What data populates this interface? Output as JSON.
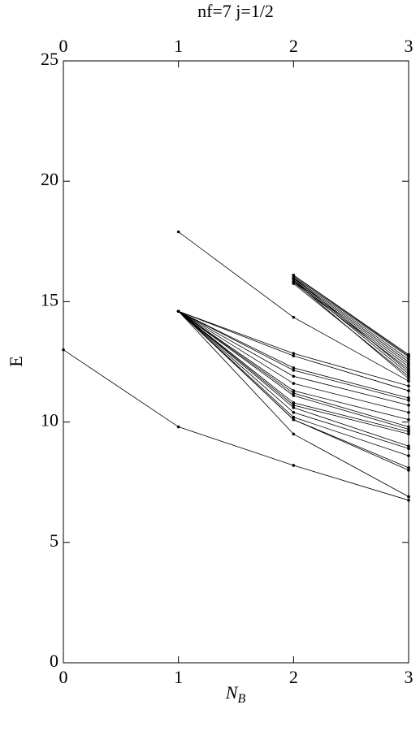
{
  "chart_data": {
    "type": "line",
    "title": "nf=7   j=1/2",
    "xlabel": "N",
    "xlabel_subscript": "B",
    "ylabel": "E",
    "x": [
      0,
      1,
      2,
      3
    ],
    "xlim": [
      0,
      3
    ],
    "xticks": [
      0,
      1,
      2,
      3
    ],
    "ylim": [
      0,
      25
    ],
    "yticks": [
      0,
      5,
      10,
      15,
      20,
      25
    ],
    "color": "#000000",
    "series": [
      {
        "values": [
          13.0,
          9.8,
          8.2,
          6.75
        ]
      },
      {
        "values": [
          null,
          17.9,
          14.35,
          11.7
        ]
      },
      {
        "values": [
          null,
          14.6,
          12.85,
          11.5
        ]
      },
      {
        "values": [
          null,
          14.6,
          12.75,
          11.3
        ]
      },
      {
        "values": [
          null,
          14.6,
          12.25,
          11.0
        ]
      },
      {
        "values": [
          null,
          14.6,
          12.15,
          10.9
        ]
      },
      {
        "values": [
          null,
          14.6,
          11.9,
          10.7
        ]
      },
      {
        "values": [
          null,
          14.6,
          11.6,
          10.4
        ]
      },
      {
        "values": [
          null,
          14.6,
          11.3,
          10.1
        ]
      },
      {
        "values": [
          null,
          14.6,
          11.2,
          9.8
        ]
      },
      {
        "values": [
          null,
          14.6,
          11.1,
          9.7
        ]
      },
      {
        "values": [
          null,
          14.6,
          10.8,
          9.6
        ]
      },
      {
        "values": [
          null,
          14.6,
          10.7,
          9.5
        ]
      },
      {
        "values": [
          null,
          14.6,
          10.6,
          9.0
        ]
      },
      {
        "values": [
          null,
          14.6,
          10.4,
          8.9
        ]
      },
      {
        "values": [
          null,
          14.6,
          10.2,
          8.6
        ]
      },
      {
        "values": [
          null,
          14.6,
          10.1,
          8.1
        ]
      },
      {
        "values": [
          null,
          14.6,
          10.1,
          8.0
        ]
      },
      {
        "values": [
          null,
          14.6,
          9.5,
          6.9
        ]
      },
      {
        "values": [
          null,
          null,
          16.1,
          12.8
        ]
      },
      {
        "values": [
          null,
          null,
          16.05,
          12.7
        ]
      },
      {
        "values": [
          null,
          null,
          16.0,
          12.6
        ]
      },
      {
        "values": [
          null,
          null,
          15.95,
          12.5
        ]
      },
      {
        "values": [
          null,
          null,
          15.9,
          12.4
        ]
      },
      {
        "values": [
          null,
          null,
          15.85,
          12.3
        ]
      },
      {
        "values": [
          null,
          null,
          15.8,
          12.2
        ]
      },
      {
        "values": [
          null,
          null,
          16.0,
          12.1
        ]
      },
      {
        "values": [
          null,
          null,
          15.9,
          12.0
        ]
      },
      {
        "values": [
          null,
          null,
          15.75,
          11.9
        ]
      },
      {
        "values": [
          null,
          null,
          16.1,
          12.75
        ]
      },
      {
        "values": [
          null,
          null,
          15.85,
          11.8
        ]
      }
    ]
  }
}
